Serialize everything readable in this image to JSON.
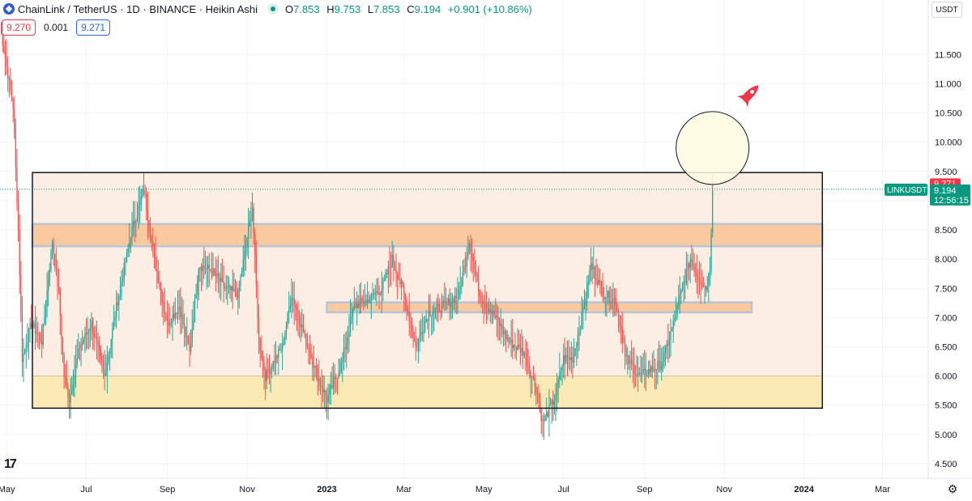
{
  "header": {
    "title": "ChainLink / TetherUS · 1D · BINANCE · Heikin Ashi",
    "ohlc": [
      {
        "k": "O",
        "v": "7.853"
      },
      {
        "k": "H",
        "v": "9.753"
      },
      {
        "k": "L",
        "v": "7.853"
      },
      {
        "k": "C",
        "v": "9.194"
      }
    ],
    "change": "+0.901 (+10.86%)",
    "sell_price": "9.270",
    "spread": "0.001",
    "buy_price": "9.271"
  },
  "unit_button": "USDT",
  "symbol_label": "LINKUSDT",
  "last_price": "9.194",
  "countdown": "12:56:15",
  "ask_price": "9.271",
  "colors": {
    "up": "#26a69a",
    "down": "#ef5350",
    "range_fill": "#fdeee4",
    "resistance": "#fbc9a0",
    "support": "#fbeab5",
    "zone_border": "#b8c4d8",
    "circle_fill": "#fdfbe0",
    "rocket": "#f23645",
    "price_tag": "#089981",
    "ask_tag": "#f23645"
  },
  "icons": [
    "chainlink-logo-icon",
    "eye-icon",
    "rocket-icon",
    "gear-icon",
    "tradingview-logo-icon"
  ],
  "chart_data": {
    "type": "candlestick",
    "title": "ChainLink / TetherUS · 1D · BINANCE · Heikin Ashi",
    "ylim": [
      4.25,
      12.1
    ],
    "y_ticks": [
      "11.500",
      "11.000",
      "10.500",
      "10.000",
      "9.500",
      "9.000",
      "8.500",
      "8.000",
      "7.500",
      "7.000",
      "6.500",
      "6.000",
      "5.500",
      "5.000",
      "4.500"
    ],
    "y_tick_values": [
      11.5,
      11.0,
      10.5,
      10.0,
      9.5,
      9.0,
      8.5,
      8.0,
      7.5,
      7.0,
      6.5,
      6.0,
      5.5,
      5.0,
      4.5
    ],
    "x_range": [
      "2022-04-26",
      "2024-04-05"
    ],
    "x_ticks": [
      {
        "label": "May",
        "date": "2022-05-01"
      },
      {
        "label": "Jul",
        "date": "2022-07-01"
      },
      {
        "label": "Sep",
        "date": "2022-09-01"
      },
      {
        "label": "Nov",
        "date": "2022-11-01"
      },
      {
        "label": "2023",
        "date": "2023-01-01"
      },
      {
        "label": "Mar",
        "date": "2023-03-01"
      },
      {
        "label": "May",
        "date": "2023-05-01"
      },
      {
        "label": "Jul",
        "date": "2023-07-01"
      },
      {
        "label": "Sep",
        "date": "2023-09-01"
      },
      {
        "label": "Nov",
        "date": "2023-11-01"
      },
      {
        "label": "2024",
        "date": "2024-01-01"
      },
      {
        "label": "Mar",
        "date": "2024-03-01"
      }
    ],
    "series_anchors": [
      [
        "2022-04-26",
        12.0
      ],
      [
        "2022-05-01",
        11.3
      ],
      [
        "2022-05-06",
        10.6
      ],
      [
        "2022-05-10",
        8.5
      ],
      [
        "2022-05-13",
        6.3
      ],
      [
        "2022-05-20",
        6.9
      ],
      [
        "2022-05-28",
        6.6
      ],
      [
        "2022-06-05",
        8.3
      ],
      [
        "2022-06-10",
        7.4
      ],
      [
        "2022-06-14",
        6.0
      ],
      [
        "2022-06-18",
        5.6
      ],
      [
        "2022-06-26",
        6.5
      ],
      [
        "2022-07-05",
        6.9
      ],
      [
        "2022-07-15",
        6.0
      ],
      [
        "2022-07-25",
        7.3
      ],
      [
        "2022-08-05",
        8.5
      ],
      [
        "2022-08-14",
        9.2
      ],
      [
        "2022-08-22",
        8.0
      ],
      [
        "2022-09-01",
        6.9
      ],
      [
        "2022-09-10",
        7.2
      ],
      [
        "2022-09-18",
        6.4
      ],
      [
        "2022-09-25",
        7.9
      ],
      [
        "2022-10-05",
        7.8
      ],
      [
        "2022-10-15",
        7.5
      ],
      [
        "2022-10-25",
        7.4
      ],
      [
        "2022-11-05",
        8.9
      ],
      [
        "2022-11-10",
        6.6
      ],
      [
        "2022-11-15",
        6.0
      ],
      [
        "2022-11-28",
        6.5
      ],
      [
        "2022-12-05",
        7.4
      ],
      [
        "2022-12-15",
        6.7
      ],
      [
        "2022-12-25",
        6.0
      ],
      [
        "2023-01-01",
        5.6
      ],
      [
        "2023-01-12",
        6.2
      ],
      [
        "2023-01-22",
        7.2
      ],
      [
        "2023-02-01",
        7.3
      ],
      [
        "2023-02-12",
        7.5
      ],
      [
        "2023-02-20",
        8.0
      ],
      [
        "2023-03-01",
        7.4
      ],
      [
        "2023-03-10",
        6.5
      ],
      [
        "2023-03-20",
        7.1
      ],
      [
        "2023-04-01",
        7.2
      ],
      [
        "2023-04-12",
        7.4
      ],
      [
        "2023-04-20",
        8.3
      ],
      [
        "2023-04-28",
        7.4
      ],
      [
        "2023-05-10",
        7.0
      ],
      [
        "2023-05-20",
        6.6
      ],
      [
        "2023-06-01",
        6.4
      ],
      [
        "2023-06-10",
        5.8
      ],
      [
        "2023-06-15",
        5.2
      ],
      [
        "2023-06-24",
        5.6
      ],
      [
        "2023-07-01",
        6.3
      ],
      [
        "2023-07-08",
        6.3
      ],
      [
        "2023-07-15",
        7.0
      ],
      [
        "2023-07-22",
        7.9
      ],
      [
        "2023-08-01",
        7.4
      ],
      [
        "2023-08-10",
        7.3
      ],
      [
        "2023-08-18",
        6.3
      ],
      [
        "2023-08-28",
        6.0
      ],
      [
        "2023-09-05",
        6.1
      ],
      [
        "2023-09-14",
        6.2
      ],
      [
        "2023-09-22",
        6.8
      ],
      [
        "2023-10-01",
        7.6
      ],
      [
        "2023-10-06",
        8.0
      ],
      [
        "2023-10-12",
        7.7
      ],
      [
        "2023-10-18",
        7.5
      ],
      [
        "2023-10-21",
        7.85
      ],
      [
        "2023-10-23",
        9.194
      ]
    ],
    "zones": [
      {
        "name": "range",
        "from": "2022-04-26",
        "to": "2024-01-15",
        "low": 5.45,
        "high": 9.48
      },
      {
        "name": "resistance",
        "from": "2022-04-26",
        "to": "2024-01-15",
        "low": 8.22,
        "high": 8.6
      },
      {
        "name": "mid-support",
        "from": "2023-01-01",
        "to": "2023-11-22",
        "low": 7.09,
        "high": 7.26
      },
      {
        "name": "support",
        "from": "2022-04-26",
        "to": "2024-01-15",
        "low": 5.45,
        "high": 6.0
      }
    ],
    "annotation_circle": {
      "date": "2023-10-23",
      "price": 9.9
    },
    "current_price_line": 9.194,
    "grid": true,
    "legend": "none"
  }
}
